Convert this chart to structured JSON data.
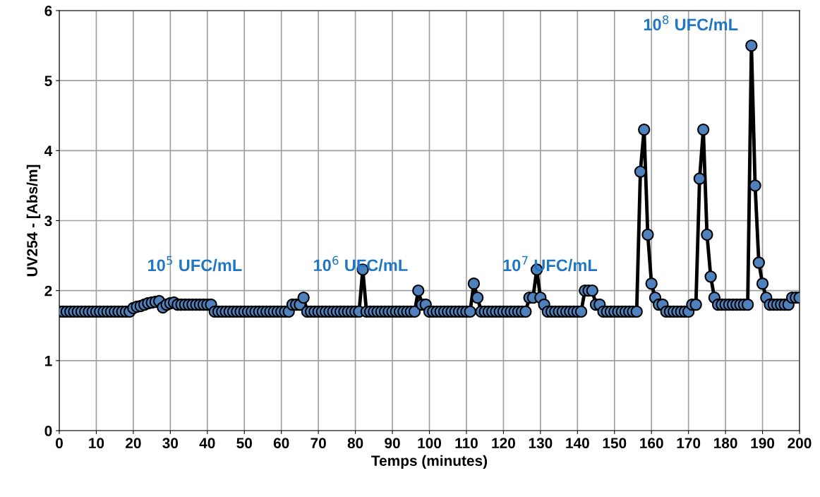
{
  "chart_data": {
    "type": "line",
    "xlabel": "Temps (minutes)",
    "ylabel": "UV254 - [Abs/m]",
    "xlim": [
      0,
      200
    ],
    "ylim": [
      0,
      6
    ],
    "xticks": [
      0,
      10,
      20,
      30,
      40,
      50,
      60,
      70,
      80,
      90,
      100,
      110,
      120,
      130,
      140,
      150,
      160,
      170,
      180,
      190,
      200
    ],
    "yticks": [
      0,
      1,
      2,
      3,
      4,
      5,
      6
    ],
    "grid": true,
    "marker": "circle",
    "line_style": "solid",
    "annotations": [
      "10$^{5}$ UFC/mL",
      "10$^{6}$ UFC/mL",
      "10$^{7}$ UFC/mL",
      "10$^{8}$ UFC/mL"
    ],
    "series": [
      {
        "color": "#4f81bd",
        "x": [
          0,
          1,
          2,
          3,
          4,
          5,
          6,
          7,
          8,
          9,
          10,
          11,
          12,
          13,
          14,
          15,
          16,
          17,
          18,
          19,
          20,
          21,
          22,
          23,
          24,
          25,
          26,
          27,
          28,
          29,
          30,
          31,
          32,
          33,
          34,
          35,
          36,
          37,
          38,
          39,
          40,
          41,
          42,
          43,
          44,
          45,
          46,
          47,
          48,
          49,
          50,
          51,
          52,
          53,
          54,
          55,
          56,
          57,
          58,
          59,
          60,
          61,
          62,
          63,
          64,
          65,
          66,
          67,
          68,
          69,
          70,
          71,
          72,
          73,
          74,
          75,
          76,
          77,
          78,
          79,
          80,
          81,
          82,
          83,
          84,
          85,
          86,
          87,
          88,
          89,
          90,
          91,
          92,
          93,
          94,
          95,
          96,
          97,
          98,
          99,
          100,
          101,
          102,
          103,
          104,
          105,
          106,
          107,
          108,
          109,
          110,
          111,
          112,
          113,
          114,
          115,
          116,
          117,
          118,
          119,
          120,
          121,
          122,
          123,
          124,
          125,
          126,
          127,
          128,
          129,
          130,
          131,
          132,
          133,
          134,
          135,
          136,
          137,
          138,
          139,
          140,
          141,
          142,
          143,
          144,
          145,
          146,
          147,
          148,
          149,
          150,
          151,
          152,
          153,
          154,
          155,
          156,
          157,
          158,
          159,
          160,
          161,
          162,
          163,
          164,
          165,
          166,
          167,
          168,
          169,
          170,
          171,
          172,
          173,
          174,
          175,
          176,
          177,
          178,
          179,
          180,
          181,
          182,
          183,
          184,
          185,
          186,
          187,
          188,
          189,
          190,
          191,
          192,
          193,
          194,
          195,
          196,
          197,
          198,
          199,
          200
        ],
        "values": [
          1.7,
          1.7,
          1.7,
          1.7,
          1.7,
          1.7,
          1.7,
          1.7,
          1.7,
          1.7,
          1.7,
          1.7,
          1.7,
          1.7,
          1.7,
          1.7,
          1.7,
          1.7,
          1.7,
          1.7,
          1.75,
          1.77,
          1.78,
          1.8,
          1.82,
          1.83,
          1.84,
          1.85,
          1.76,
          1.8,
          1.82,
          1.83,
          1.8,
          1.8,
          1.8,
          1.8,
          1.8,
          1.8,
          1.8,
          1.8,
          1.8,
          1.8,
          1.7,
          1.7,
          1.7,
          1.7,
          1.7,
          1.7,
          1.7,
          1.7,
          1.7,
          1.7,
          1.7,
          1.7,
          1.7,
          1.7,
          1.7,
          1.7,
          1.7,
          1.7,
          1.7,
          1.7,
          1.7,
          1.8,
          1.8,
          1.8,
          1.9,
          1.7,
          1.7,
          1.7,
          1.7,
          1.7,
          1.7,
          1.7,
          1.7,
          1.7,
          1.7,
          1.7,
          1.7,
          1.7,
          1.7,
          1.7,
          2.3,
          1.7,
          1.7,
          1.7,
          1.7,
          1.7,
          1.7,
          1.7,
          1.7,
          1.7,
          1.7,
          1.7,
          1.7,
          1.7,
          1.7,
          2.0,
          1.8,
          1.8,
          1.7,
          1.7,
          1.7,
          1.7,
          1.7,
          1.7,
          1.7,
          1.7,
          1.7,
          1.7,
          1.7,
          1.7,
          2.1,
          1.9,
          1.7,
          1.7,
          1.7,
          1.7,
          1.7,
          1.7,
          1.7,
          1.7,
          1.7,
          1.7,
          1.7,
          1.7,
          1.7,
          1.9,
          1.9,
          2.3,
          1.9,
          1.8,
          1.7,
          1.7,
          1.7,
          1.7,
          1.7,
          1.7,
          1.7,
          1.7,
          1.7,
          1.7,
          2.0,
          2.0,
          2.0,
          1.8,
          1.8,
          1.7,
          1.7,
          1.7,
          1.7,
          1.7,
          1.7,
          1.7,
          1.7,
          1.7,
          1.7,
          3.7,
          4.3,
          2.8,
          2.1,
          1.9,
          1.8,
          1.8,
          1.7,
          1.7,
          1.7,
          1.7,
          1.7,
          1.7,
          1.7,
          1.8,
          1.8,
          3.6,
          4.3,
          2.8,
          2.2,
          1.9,
          1.8,
          1.8,
          1.8,
          1.8,
          1.8,
          1.8,
          1.8,
          1.8,
          1.8,
          5.5,
          3.5,
          2.4,
          2.1,
          1.9,
          1.8,
          1.8,
          1.8,
          1.8,
          1.8,
          1.8,
          1.9,
          1.9,
          1.9
        ]
      }
    ]
  }
}
